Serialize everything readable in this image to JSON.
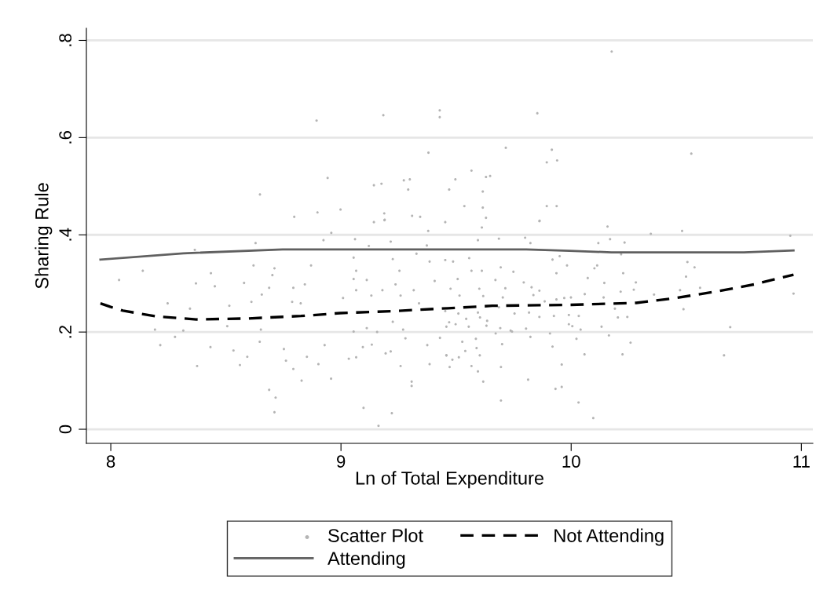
{
  "chart_data": {
    "type": "line",
    "xlabel": "Ln of Total Expenditure",
    "ylabel": "Sharing Rule",
    "xlim": [
      7.894,
      11.05
    ],
    "xticks": [
      8,
      9,
      10,
      11
    ],
    "ylim": [
      -0.029,
      0.825
    ],
    "yticks": [
      {
        "value": 0,
        "label": "0"
      },
      {
        "value": 0.2,
        "label": ".2"
      },
      {
        "value": 0.4,
        "label": ".4"
      },
      {
        "value": 0.6,
        "label": ".6"
      },
      {
        "value": 0.8,
        "label": ".8"
      }
    ],
    "grid": "y",
    "legend": "bottom",
    "series": [
      {
        "name": "Scatter Plot",
        "type": "scatter",
        "marker": "circle",
        "color": "#b4b4b4",
        "x": [
          10.176,
          8.894,
          9.184,
          9.429,
          9.429,
          9.853,
          9.38,
          9.716,
          9.916,
          9.894,
          9.939,
          10.522,
          8.942,
          8.648,
          9.567,
          9.63,
          9.648,
          9.273,
          9.299,
          9.143,
          9.176,
          9.292,
          9.47,
          9.616,
          9.497,
          8.797,
          8.898,
          8.998,
          9.188,
          9.19,
          9.309,
          9.344,
          9.536,
          9.616,
          9.63,
          9.894,
          9.937,
          9.863,
          8.139,
          8.036,
          8.37,
          8.452,
          8.247,
          8.344,
          8.192,
          8.315,
          8.279,
          8.215,
          8.375,
          8.433,
          8.533,
          8.593,
          8.561,
          8.435,
          8.629,
          8.365,
          8.62,
          8.711,
          8.702,
          8.579,
          8.656,
          8.688,
          8.611,
          8.515,
          8.506,
          8.652,
          8.647,
          8.752,
          8.761,
          8.793,
          8.829,
          8.688,
          8.716,
          8.711,
          8.87,
          8.843,
          8.793,
          8.788,
          8.825,
          8.852,
          8.929,
          8.902,
          8.957,
          8.924,
          8.958,
          9.061,
          9.121,
          9.143,
          9.189,
          9.216,
          9.055,
          9.066,
          9.055,
          9.112,
          9.009,
          9.066,
          9.132,
          9.18,
          9.225,
          9.254,
          9.237,
          9.259,
          9.316,
          9.373,
          9.379,
          9.328,
          9.385,
          9.407,
          9.339,
          9.225,
          9.27,
          9.157,
          9.112,
          9.055,
          9.095,
          9.134,
          9.034,
          9.066,
          9.194,
          9.216,
          9.259,
          9.28,
          9.307,
          9.307,
          9.385,
          9.43,
          9.375,
          9.098,
          9.221,
          9.163,
          9.458,
          9.453,
          9.612,
          9.862,
          10.158,
          10.346,
          10.482,
          10.952,
          9.595,
          9.686,
          9.8,
          9.823,
          10.118,
          10.232,
          10.169,
          9.919,
          9.95,
          9.982,
          9.936,
          10.113,
          10.101,
          10.217,
          10.226,
          10.505,
          10.536,
          10.499,
          10.072,
          10.144,
          10.281,
          10.272,
          10.215,
          10.059,
          10.36,
          10.473,
          10.56,
          10.966,
          10.141,
          10.488,
          10.19,
          10.203,
          10.244,
          10.132,
          10.164,
          10.258,
          10.223,
          10.691,
          10.664,
          10.058,
          9.959,
          9.932,
          9.959,
          10.032,
          10.096,
          9.908,
          9.919,
          10.023,
          9.813,
          9.695,
          9.695,
          9.618,
          9.595,
          9.567,
          9.472,
          9.484,
          9.512,
          9.458,
          9.603,
          9.589,
          9.54,
          9.527,
          9.586,
          9.7,
          9.823,
          9.672,
          9.743,
          9.804,
          9.453,
          9.557,
          9.487,
          9.567,
          9.612,
          9.694,
          9.749,
          9.507,
          9.671,
          9.794,
          9.476,
          9.601,
          9.714,
          9.828,
          9.862,
          9.515,
          9.618,
          9.703,
          9.836,
          9.885,
          9.97,
          9.999,
          9.936,
          9.453,
          9.51,
          9.595,
          9.686,
          9.754,
          9.817,
          9.925,
          9.99,
          10.033,
          9.862,
          9.604,
          9.544,
          9.635,
          9.47,
          9.498,
          9.458,
          9.555,
          9.632,
          9.692,
          9.99,
          10.005,
          10.041,
          9.737
        ],
        "values": [
          0.777,
          0.635,
          0.646,
          0.656,
          0.642,
          0.65,
          0.569,
          0.579,
          0.575,
          0.549,
          0.553,
          0.567,
          0.517,
          0.483,
          0.532,
          0.519,
          0.521,
          0.512,
          0.514,
          0.502,
          0.505,
          0.493,
          0.493,
          0.489,
          0.514,
          0.437,
          0.446,
          0.452,
          0.444,
          0.431,
          0.439,
          0.437,
          0.459,
          0.456,
          0.435,
          0.459,
          0.459,
          0.429,
          0.326,
          0.307,
          0.3,
          0.294,
          0.259,
          0.248,
          0.205,
          0.203,
          0.19,
          0.173,
          0.13,
          0.169,
          0.162,
          0.149,
          0.132,
          0.321,
          0.383,
          0.369,
          0.337,
          0.331,
          0.317,
          0.301,
          0.277,
          0.291,
          0.262,
          0.254,
          0.212,
          0.205,
          0.18,
          0.165,
          0.141,
          0.124,
          0.1,
          0.081,
          0.065,
          0.035,
          0.337,
          0.298,
          0.291,
          0.262,
          0.259,
          0.149,
          0.173,
          0.134,
          0.104,
          0.389,
          0.404,
          0.391,
          0.377,
          0.426,
          0.43,
          0.386,
          0.353,
          0.326,
          0.309,
          0.307,
          0.27,
          0.286,
          0.275,
          0.286,
          0.35,
          0.326,
          0.298,
          0.275,
          0.286,
          0.378,
          0.408,
          0.361,
          0.345,
          0.305,
          0.259,
          0.221,
          0.205,
          0.2,
          0.208,
          0.201,
          0.169,
          0.174,
          0.145,
          0.148,
          0.156,
          0.16,
          0.13,
          0.187,
          0.098,
          0.089,
          0.134,
          0.188,
          0.173,
          0.044,
          0.033,
          0.007,
          0.152,
          0.426,
          0.415,
          0.428,
          0.417,
          0.402,
          0.408,
          0.398,
          0.389,
          0.392,
          0.394,
          0.383,
          0.383,
          0.384,
          0.391,
          0.349,
          0.356,
          0.337,
          0.321,
          0.337,
          0.331,
          0.36,
          0.321,
          0.344,
          0.333,
          0.314,
          0.311,
          0.301,
          0.302,
          0.287,
          0.283,
          0.278,
          0.277,
          0.286,
          0.291,
          0.279,
          0.271,
          0.247,
          0.248,
          0.23,
          0.231,
          0.211,
          0.193,
          0.178,
          0.154,
          0.21,
          0.152,
          0.154,
          0.133,
          0.083,
          0.087,
          0.055,
          0.023,
          0.197,
          0.17,
          0.186,
          0.102,
          0.059,
          0.128,
          0.098,
          0.119,
          0.13,
          0.128,
          0.143,
          0.148,
          0.152,
          0.152,
          0.167,
          0.161,
          0.18,
          0.186,
          0.175,
          0.19,
          0.197,
          0.201,
          0.207,
          0.348,
          0.352,
          0.345,
          0.326,
          0.326,
          0.333,
          0.324,
          0.309,
          0.307,
          0.302,
          0.289,
          0.289,
          0.29,
          0.292,
          0.285,
          0.275,
          0.274,
          0.271,
          0.276,
          0.263,
          0.27,
          0.271,
          0.267,
          0.243,
          0.238,
          0.24,
          0.251,
          0.238,
          0.24,
          0.233,
          0.235,
          0.233,
          0.231,
          0.23,
          0.227,
          0.223,
          0.22,
          0.216,
          0.211,
          0.211,
          0.213,
          0.208,
          0.216,
          0.212,
          0.205,
          0.203
        ]
      },
      {
        "name": "Not Attending",
        "line_style": "dashed",
        "color": "#000000",
        "x": [
          7.955,
          7.997,
          8.053,
          8.2,
          8.372,
          8.6,
          8.826,
          8.997,
          9.225,
          9.464,
          9.658,
          9.999,
          10.283,
          10.454,
          10.625,
          10.795,
          10.966
        ],
        "values": [
          0.259,
          0.252,
          0.244,
          0.232,
          0.226,
          0.228,
          0.233,
          0.239,
          0.243,
          0.249,
          0.254,
          0.256,
          0.26,
          0.27,
          0.283,
          0.298,
          0.318
        ]
      },
      {
        "name": "Attending",
        "line_style": "solid",
        "color": "#606060",
        "x": [
          7.955,
          8.315,
          8.747,
          9.464,
          9.805,
          9.993,
          10.175,
          10.75,
          10.966
        ],
        "values": [
          0.349,
          0.362,
          0.37,
          0.37,
          0.37,
          0.367,
          0.364,
          0.364,
          0.368
        ]
      }
    ]
  }
}
